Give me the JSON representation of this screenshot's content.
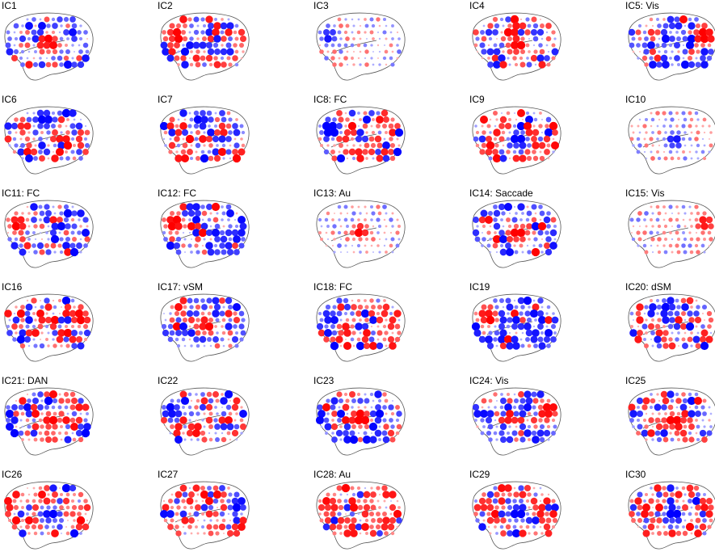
{
  "figure": {
    "panels": [
      {
        "label": "IC1",
        "type": "mixed-blue",
        "hot": "red-center"
      },
      {
        "label": "IC2",
        "type": "mixed",
        "hot": "red-front"
      },
      {
        "label": "IC3",
        "type": "sparse",
        "hot": "blue-front"
      },
      {
        "label": "IC4",
        "type": "mixed",
        "hot": "red-mid"
      },
      {
        "label": "IC5: Vis",
        "type": "blue-strong",
        "hot": "red-back"
      },
      {
        "label": "IC6",
        "type": "mixed",
        "hot": "blue-top"
      },
      {
        "label": "IC7",
        "type": "mixed",
        "hot": "blue-top"
      },
      {
        "label": "IC8: FC",
        "type": "red-strong",
        "hot": "blue-front"
      },
      {
        "label": "IC9",
        "type": "red-strong",
        "hot": "blue-mid"
      },
      {
        "label": "IC10",
        "type": "sparse",
        "hot": "blue-mid"
      },
      {
        "label": "IC11: FC",
        "type": "blue-strong",
        "hot": "red-front"
      },
      {
        "label": "IC12: FC",
        "type": "blue-strong",
        "hot": "red-front"
      },
      {
        "label": "IC13: Au",
        "type": "sparse",
        "hot": "red-center"
      },
      {
        "label": "IC14: Saccade",
        "type": "blue-strong",
        "hot": "red-mid"
      },
      {
        "label": "IC15: Vis",
        "type": "sparse",
        "hot": "red-back"
      },
      {
        "label": "IC16",
        "type": "mixed",
        "hot": "red-back"
      },
      {
        "label": "IC17: vSM",
        "type": "blue-strong",
        "hot": "red-center"
      },
      {
        "label": "IC18: FC",
        "type": "red-strong",
        "hot": "blue-front"
      },
      {
        "label": "IC19",
        "type": "blue-strong",
        "hot": "red-front"
      },
      {
        "label": "IC20: dSM",
        "type": "mixed",
        "hot": "blue-top"
      },
      {
        "label": "IC21: DAN",
        "type": "mixed",
        "hot": "red-mid"
      },
      {
        "label": "IC22",
        "type": "mixed",
        "hot": "blue-front"
      },
      {
        "label": "IC23",
        "type": "blue-strong",
        "hot": "red-center"
      },
      {
        "label": "IC24: Vis",
        "type": "blue-strong",
        "hot": "red-back"
      },
      {
        "label": "IC25",
        "type": "mixed",
        "hot": "red-mid"
      },
      {
        "label": "IC26",
        "type": "red-strong",
        "hot": "blue-mid"
      },
      {
        "label": "IC27",
        "type": "red-strong",
        "hot": "blue-back"
      },
      {
        "label": "IC28: Au",
        "type": "red-strong",
        "hot": "red-front"
      },
      {
        "label": "IC29",
        "type": "red-strong",
        "hot": "blue-center"
      },
      {
        "label": "IC30",
        "type": "red-strong",
        "hot": "blue-mid"
      }
    ],
    "colors": {
      "positive": "#ff0000",
      "negative": "#0000ff",
      "outline": "#555555"
    }
  }
}
